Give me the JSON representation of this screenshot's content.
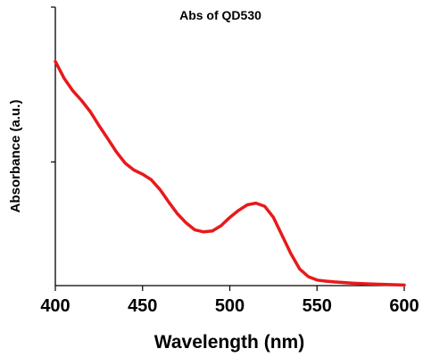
{
  "chart_data": {
    "type": "line",
    "title": "Abs of QD530",
    "xlabel": "Wavelength (nm)",
    "ylabel": "Absorbance (a.u.)",
    "xlim": [
      400,
      600
    ],
    "ylim": [
      0,
      1
    ],
    "x_ticks": [
      "400",
      "450",
      "500",
      "550",
      "600"
    ],
    "y_tick_values": [
      0.444,
      1.0
    ],
    "grid": false,
    "series": [
      {
        "color": "#e8191b",
        "x": [
          400,
          405,
          410,
          415,
          420,
          425,
          430,
          435,
          440,
          445,
          450,
          455,
          460,
          465,
          470,
          475,
          480,
          485,
          490,
          495,
          500,
          505,
          510,
          515,
          520,
          525,
          530,
          535,
          540,
          545,
          550,
          555,
          560,
          570,
          580,
          590,
          600
        ],
        "y": [
          0.805,
          0.745,
          0.7,
          0.665,
          0.625,
          0.575,
          0.528,
          0.48,
          0.44,
          0.415,
          0.4,
          0.38,
          0.345,
          0.3,
          0.258,
          0.225,
          0.2,
          0.193,
          0.196,
          0.215,
          0.245,
          0.27,
          0.29,
          0.296,
          0.285,
          0.245,
          0.18,
          0.115,
          0.06,
          0.032,
          0.02,
          0.016,
          0.013,
          0.009,
          0.006,
          0.004,
          0.002
        ]
      }
    ]
  }
}
